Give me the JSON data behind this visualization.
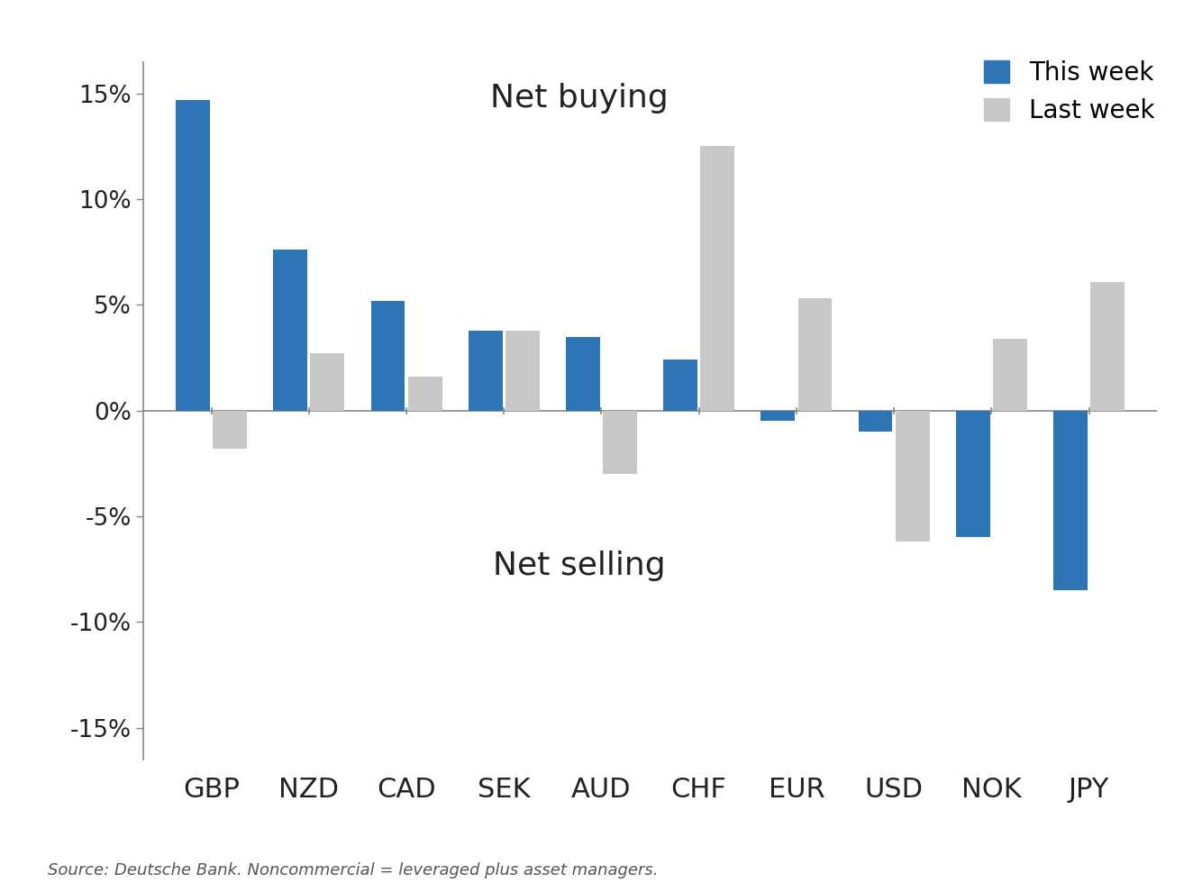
{
  "categories": [
    "GBP",
    "NZD",
    "CAD",
    "SEK",
    "AUD",
    "CHF",
    "EUR",
    "USD",
    "NOK",
    "JPY"
  ],
  "this_week": [
    14.7,
    7.6,
    5.2,
    3.8,
    3.5,
    2.4,
    -0.5,
    -1.0,
    -6.0,
    -8.5
  ],
  "last_week": [
    -1.8,
    2.7,
    1.6,
    3.8,
    -3.0,
    12.5,
    5.3,
    -6.2,
    3.4,
    6.1
  ],
  "blue_color": "#2E75B6",
  "gray_color": "#C8C8C8",
  "ylim": [
    -16.5,
    16.5
  ],
  "yticks": [
    -15,
    -10,
    -5,
    0,
    5,
    10,
    15
  ],
  "ytick_labels": [
    "-15%",
    "-10%",
    "-5%",
    "0%",
    "5%",
    "10%",
    "15%"
  ],
  "net_buying_label": "Net buying",
  "net_selling_label": "Net selling",
  "legend_this_week": "This week",
  "legend_last_week": "Last week",
  "source_text": "Source: Deutsche Bank. Noncommercial = leveraged plus asset managers.",
  "background_color": "#FFFFFF"
}
